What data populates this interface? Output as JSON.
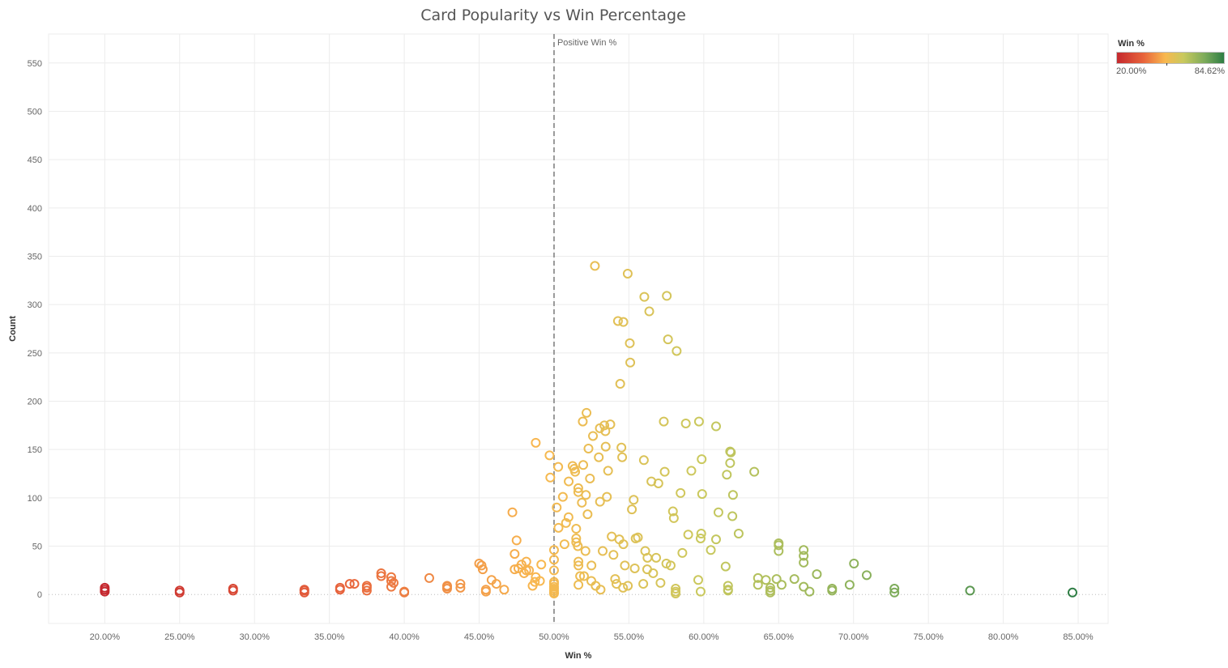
{
  "title": "Card Popularity vs Win Percentage",
  "legend": {
    "title": "Win %",
    "min_label": "20.00%",
    "max_label": "84.62%"
  },
  "reference_line": {
    "x": 50,
    "label": "Positive Win %"
  },
  "colors": {
    "low": "#c5282e",
    "mid_low": "#e8653c",
    "mid": "#f8b84f",
    "mid_high": "#c9c95e",
    "high_mid": "#7cab5b",
    "high": "#2e7d44",
    "grid": "#ececec",
    "refline": "#999999"
  },
  "chart_data": {
    "type": "scatter",
    "title": "Card Popularity vs Win Percentage",
    "xlabel": "Win %",
    "ylabel": "Count",
    "xlim": [
      16.25,
      87.0
    ],
    "ylim": [
      -30,
      580
    ],
    "x_ticks": [
      20,
      25,
      30,
      35,
      40,
      45,
      50,
      55,
      60,
      65,
      70,
      75,
      80,
      85
    ],
    "x_tick_labels": [
      "20.00%",
      "25.00%",
      "30.00%",
      "35.00%",
      "40.00%",
      "45.00%",
      "50.00%",
      "55.00%",
      "60.00%",
      "65.00%",
      "70.00%",
      "75.00%",
      "80.00%",
      "85.00%"
    ],
    "y_ticks": [
      0,
      50,
      100,
      150,
      200,
      250,
      300,
      350,
      400,
      450,
      500,
      550
    ],
    "color_range": [
      20.0,
      84.62
    ],
    "points": [
      [
        20.0,
        3
      ],
      [
        20.0,
        5
      ],
      [
        20.0,
        7
      ],
      [
        25.0,
        2
      ],
      [
        25.0,
        4
      ],
      [
        28.57,
        4
      ],
      [
        28.57,
        6
      ],
      [
        33.33,
        2
      ],
      [
        33.33,
        4
      ],
      [
        33.33,
        5
      ],
      [
        35.71,
        5
      ],
      [
        35.71,
        7
      ],
      [
        36.36,
        11
      ],
      [
        36.67,
        11
      ],
      [
        37.5,
        4
      ],
      [
        37.5,
        7
      ],
      [
        37.5,
        9
      ],
      [
        38.46,
        19
      ],
      [
        38.46,
        22
      ],
      [
        39.13,
        8
      ],
      [
        39.13,
        14
      ],
      [
        39.13,
        18
      ],
      [
        39.29,
        12
      ],
      [
        40.0,
        2
      ],
      [
        40.0,
        3
      ],
      [
        41.67,
        17
      ],
      [
        42.86,
        6
      ],
      [
        42.86,
        8
      ],
      [
        42.86,
        9
      ],
      [
        43.75,
        7
      ],
      [
        43.75,
        11
      ],
      [
        45.0,
        32
      ],
      [
        45.16,
        30
      ],
      [
        45.24,
        26
      ],
      [
        45.45,
        3
      ],
      [
        45.45,
        5
      ],
      [
        45.83,
        15
      ],
      [
        46.15,
        11
      ],
      [
        46.67,
        5
      ],
      [
        47.22,
        85
      ],
      [
        47.37,
        26
      ],
      [
        47.37,
        42
      ],
      [
        47.5,
        56
      ],
      [
        47.62,
        27
      ],
      [
        47.83,
        31
      ],
      [
        48.0,
        22
      ],
      [
        48.15,
        25
      ],
      [
        48.15,
        34
      ],
      [
        48.33,
        25
      ],
      [
        48.57,
        9
      ],
      [
        48.72,
        13
      ],
      [
        48.78,
        157
      ],
      [
        48.78,
        18
      ],
      [
        49.06,
        14
      ],
      [
        49.15,
        31
      ],
      [
        49.7,
        144
      ],
      [
        49.75,
        121
      ],
      [
        50.0,
        1
      ],
      [
        50.0,
        2
      ],
      [
        50.0,
        4
      ],
      [
        50.0,
        6
      ],
      [
        50.0,
        8
      ],
      [
        50.0,
        11
      ],
      [
        50.0,
        13
      ],
      [
        50.0,
        25
      ],
      [
        50.0,
        36
      ],
      [
        50.0,
        46
      ],
      [
        50.18,
        90
      ],
      [
        50.28,
        132
      ],
      [
        50.3,
        69
      ],
      [
        50.59,
        101
      ],
      [
        50.7,
        52
      ],
      [
        50.8,
        74
      ],
      [
        50.97,
        80
      ],
      [
        50.98,
        117
      ],
      [
        51.24,
        133
      ],
      [
        51.35,
        130
      ],
      [
        51.41,
        127
      ],
      [
        51.48,
        58
      ],
      [
        51.48,
        54
      ],
      [
        51.48,
        68
      ],
      [
        51.59,
        50
      ],
      [
        51.62,
        110
      ],
      [
        51.62,
        106
      ],
      [
        51.63,
        34
      ],
      [
        51.63,
        10
      ],
      [
        51.63,
        30
      ],
      [
        51.74,
        19
      ],
      [
        51.86,
        95
      ],
      [
        51.92,
        179
      ],
      [
        51.95,
        134
      ],
      [
        52.0,
        19
      ],
      [
        52.1,
        45
      ],
      [
        52.13,
        103
      ],
      [
        52.17,
        188
      ],
      [
        52.24,
        83
      ],
      [
        52.3,
        151
      ],
      [
        52.4,
        120
      ],
      [
        52.49,
        14
      ],
      [
        52.5,
        30
      ],
      [
        52.6,
        164
      ],
      [
        52.73,
        340
      ],
      [
        52.78,
        9
      ],
      [
        52.99,
        142
      ],
      [
        53.06,
        172
      ],
      [
        53.07,
        96
      ],
      [
        53.11,
        5
      ],
      [
        53.25,
        45
      ],
      [
        53.36,
        175
      ],
      [
        53.43,
        169
      ],
      [
        53.45,
        153
      ],
      [
        53.53,
        101
      ],
      [
        53.61,
        128
      ],
      [
        53.76,
        176
      ],
      [
        53.85,
        60
      ],
      [
        53.97,
        41
      ],
      [
        54.08,
        16
      ],
      [
        54.17,
        11
      ],
      [
        54.27,
        283
      ],
      [
        54.36,
        57
      ],
      [
        54.42,
        218
      ],
      [
        54.5,
        152
      ],
      [
        54.55,
        142
      ],
      [
        54.61,
        7
      ],
      [
        54.63,
        282
      ],
      [
        54.63,
        52
      ],
      [
        54.73,
        30
      ],
      [
        54.92,
        332
      ],
      [
        54.93,
        9
      ],
      [
        55.06,
        260
      ],
      [
        55.09,
        240
      ],
      [
        55.2,
        88
      ],
      [
        55.32,
        98
      ],
      [
        55.39,
        27
      ],
      [
        55.45,
        58
      ],
      [
        55.6,
        59
      ],
      [
        55.96,
        11
      ],
      [
        56.0,
        139
      ],
      [
        56.03,
        308
      ],
      [
        56.09,
        45
      ],
      [
        56.22,
        26
      ],
      [
        56.24,
        38
      ],
      [
        56.36,
        293
      ],
      [
        56.5,
        117
      ],
      [
        56.62,
        22
      ],
      [
        56.82,
        38
      ],
      [
        56.97,
        115
      ],
      [
        57.11,
        12
      ],
      [
        57.33,
        179
      ],
      [
        57.39,
        127
      ],
      [
        57.5,
        32
      ],
      [
        57.53,
        309
      ],
      [
        57.61,
        264
      ],
      [
        57.79,
        30
      ],
      [
        57.94,
        86
      ],
      [
        58.0,
        79
      ],
      [
        58.12,
        1
      ],
      [
        58.12,
        3
      ],
      [
        58.12,
        6
      ],
      [
        58.19,
        252
      ],
      [
        58.45,
        105
      ],
      [
        58.57,
        43
      ],
      [
        58.8,
        177
      ],
      [
        58.96,
        62
      ],
      [
        59.17,
        128
      ],
      [
        59.63,
        15
      ],
      [
        59.68,
        179
      ],
      [
        59.79,
        3
      ],
      [
        59.79,
        58
      ],
      [
        59.83,
        63
      ],
      [
        59.86,
        140
      ],
      [
        59.89,
        104
      ],
      [
        60.47,
        46
      ],
      [
        60.82,
        174
      ],
      [
        60.82,
        57
      ],
      [
        60.98,
        85
      ],
      [
        61.46,
        29
      ],
      [
        61.54,
        124
      ],
      [
        61.62,
        9
      ],
      [
        61.62,
        5
      ],
      [
        61.62,
        4
      ],
      [
        61.76,
        136
      ],
      [
        61.76,
        148
      ],
      [
        61.81,
        147
      ],
      [
        61.91,
        81
      ],
      [
        61.95,
        103
      ],
      [
        62.33,
        63
      ],
      [
        63.37,
        127
      ],
      [
        63.62,
        17
      ],
      [
        63.62,
        10
      ],
      [
        64.15,
        15
      ],
      [
        64.44,
        4
      ],
      [
        64.44,
        7
      ],
      [
        64.44,
        2
      ],
      [
        64.86,
        16
      ],
      [
        65.0,
        45
      ],
      [
        65.0,
        51
      ],
      [
        65.0,
        53
      ],
      [
        65.2,
        10
      ],
      [
        66.05,
        16
      ],
      [
        66.67,
        46
      ],
      [
        66.67,
        40
      ],
      [
        66.67,
        33
      ],
      [
        66.67,
        8
      ],
      [
        67.06,
        3
      ],
      [
        67.55,
        21
      ],
      [
        68.57,
        4
      ],
      [
        68.57,
        6
      ],
      [
        69.74,
        10
      ],
      [
        70.03,
        32
      ],
      [
        70.88,
        20
      ],
      [
        72.73,
        2
      ],
      [
        72.73,
        6
      ],
      [
        77.78,
        4
      ],
      [
        84.62,
        2
      ]
    ]
  }
}
